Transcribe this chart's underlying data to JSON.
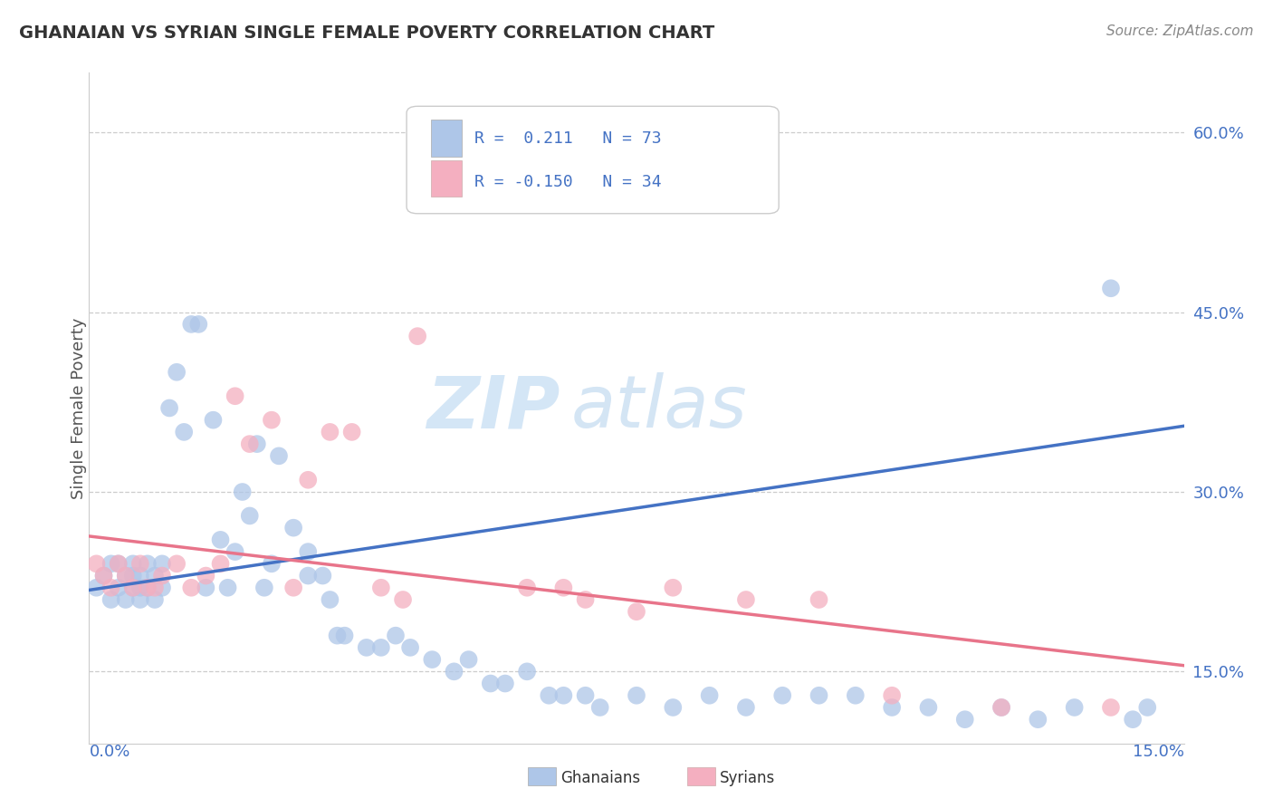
{
  "title": "GHANAIAN VS SYRIAN SINGLE FEMALE POVERTY CORRELATION CHART",
  "source": "Source: ZipAtlas.com",
  "ylabel": "Single Female Poverty",
  "xlim": [
    0.0,
    0.15
  ],
  "ylim": [
    0.09,
    0.65
  ],
  "yticks": [
    0.15,
    0.3,
    0.45,
    0.6
  ],
  "ytick_labels": [
    "15.0%",
    "30.0%",
    "45.0%",
    "60.0%"
  ],
  "blue_color": "#aec6e8",
  "pink_color": "#f4afc0",
  "trend_blue": "#4472c4",
  "trend_pink": "#e8748a",
  "blue_label_color": "#4472c4",
  "watermark_color": "#d0e4f5",
  "ghanaian_x": [
    0.001,
    0.002,
    0.003,
    0.003,
    0.004,
    0.004,
    0.005,
    0.005,
    0.006,
    0.006,
    0.006,
    0.007,
    0.007,
    0.007,
    0.008,
    0.008,
    0.009,
    0.009,
    0.01,
    0.01,
    0.011,
    0.012,
    0.013,
    0.014,
    0.015,
    0.016,
    0.017,
    0.018,
    0.019,
    0.02,
    0.021,
    0.022,
    0.023,
    0.024,
    0.025,
    0.026,
    0.028,
    0.03,
    0.03,
    0.032,
    0.033,
    0.034,
    0.035,
    0.038,
    0.04,
    0.042,
    0.044,
    0.047,
    0.05,
    0.052,
    0.055,
    0.057,
    0.06,
    0.063,
    0.065,
    0.068,
    0.07,
    0.075,
    0.08,
    0.085,
    0.09,
    0.095,
    0.1,
    0.105,
    0.11,
    0.115,
    0.12,
    0.125,
    0.13,
    0.135,
    0.14,
    0.143,
    0.145
  ],
  "ghanaian_y": [
    0.22,
    0.23,
    0.21,
    0.24,
    0.22,
    0.24,
    0.21,
    0.23,
    0.22,
    0.23,
    0.24,
    0.22,
    0.21,
    0.23,
    0.22,
    0.24,
    0.21,
    0.23,
    0.22,
    0.24,
    0.37,
    0.4,
    0.35,
    0.44,
    0.44,
    0.22,
    0.36,
    0.26,
    0.22,
    0.25,
    0.3,
    0.28,
    0.34,
    0.22,
    0.24,
    0.33,
    0.27,
    0.25,
    0.23,
    0.23,
    0.21,
    0.18,
    0.18,
    0.17,
    0.17,
    0.18,
    0.17,
    0.16,
    0.15,
    0.16,
    0.14,
    0.14,
    0.15,
    0.13,
    0.13,
    0.13,
    0.12,
    0.13,
    0.12,
    0.13,
    0.12,
    0.13,
    0.13,
    0.13,
    0.12,
    0.12,
    0.11,
    0.12,
    0.11,
    0.12,
    0.47,
    0.11,
    0.12
  ],
  "syrian_x": [
    0.001,
    0.002,
    0.003,
    0.004,
    0.005,
    0.006,
    0.007,
    0.008,
    0.009,
    0.01,
    0.012,
    0.014,
    0.016,
    0.018,
    0.02,
    0.022,
    0.025,
    0.028,
    0.03,
    0.033,
    0.036,
    0.04,
    0.043,
    0.045,
    0.06,
    0.065,
    0.068,
    0.075,
    0.08,
    0.09,
    0.1,
    0.11,
    0.125,
    0.14
  ],
  "syrian_y": [
    0.24,
    0.23,
    0.22,
    0.24,
    0.23,
    0.22,
    0.24,
    0.22,
    0.22,
    0.23,
    0.24,
    0.22,
    0.23,
    0.24,
    0.38,
    0.34,
    0.36,
    0.22,
    0.31,
    0.35,
    0.35,
    0.22,
    0.21,
    0.43,
    0.22,
    0.22,
    0.21,
    0.2,
    0.22,
    0.21,
    0.21,
    0.13,
    0.12,
    0.12
  ],
  "blue_trend_y0": 0.218,
  "blue_trend_y1": 0.355,
  "pink_trend_y0": 0.263,
  "pink_trend_y1": 0.155
}
